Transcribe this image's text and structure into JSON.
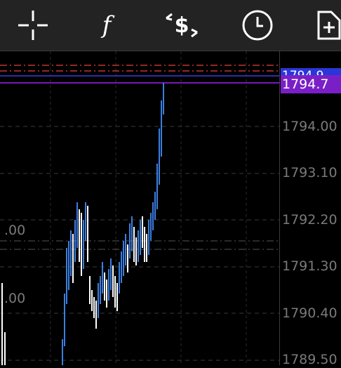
{
  "toolbar": {
    "crosshair_icon": "crosshair-icon",
    "indicators_label": "f",
    "trade_icon": "dollar-arrows-icon",
    "period_icon": "clock-icon",
    "add_icon": "add-document-icon"
  },
  "price_axis": {
    "ask_label": "1794.9",
    "bid_label": "1794.7",
    "ticks": [
      "1794.00",
      "1793.10",
      "1792.20",
      "1791.30",
      "1790.40",
      "1789.50"
    ]
  },
  "chart": {
    "left_labels": [
      ".00",
      ".00"
    ],
    "colors": {
      "up": "#3b7ee0",
      "down": "#ffffff",
      "bid_line": "#a020f0",
      "ask_line": "#3a3ae8",
      "level_lines": "#c0392b"
    }
  }
}
